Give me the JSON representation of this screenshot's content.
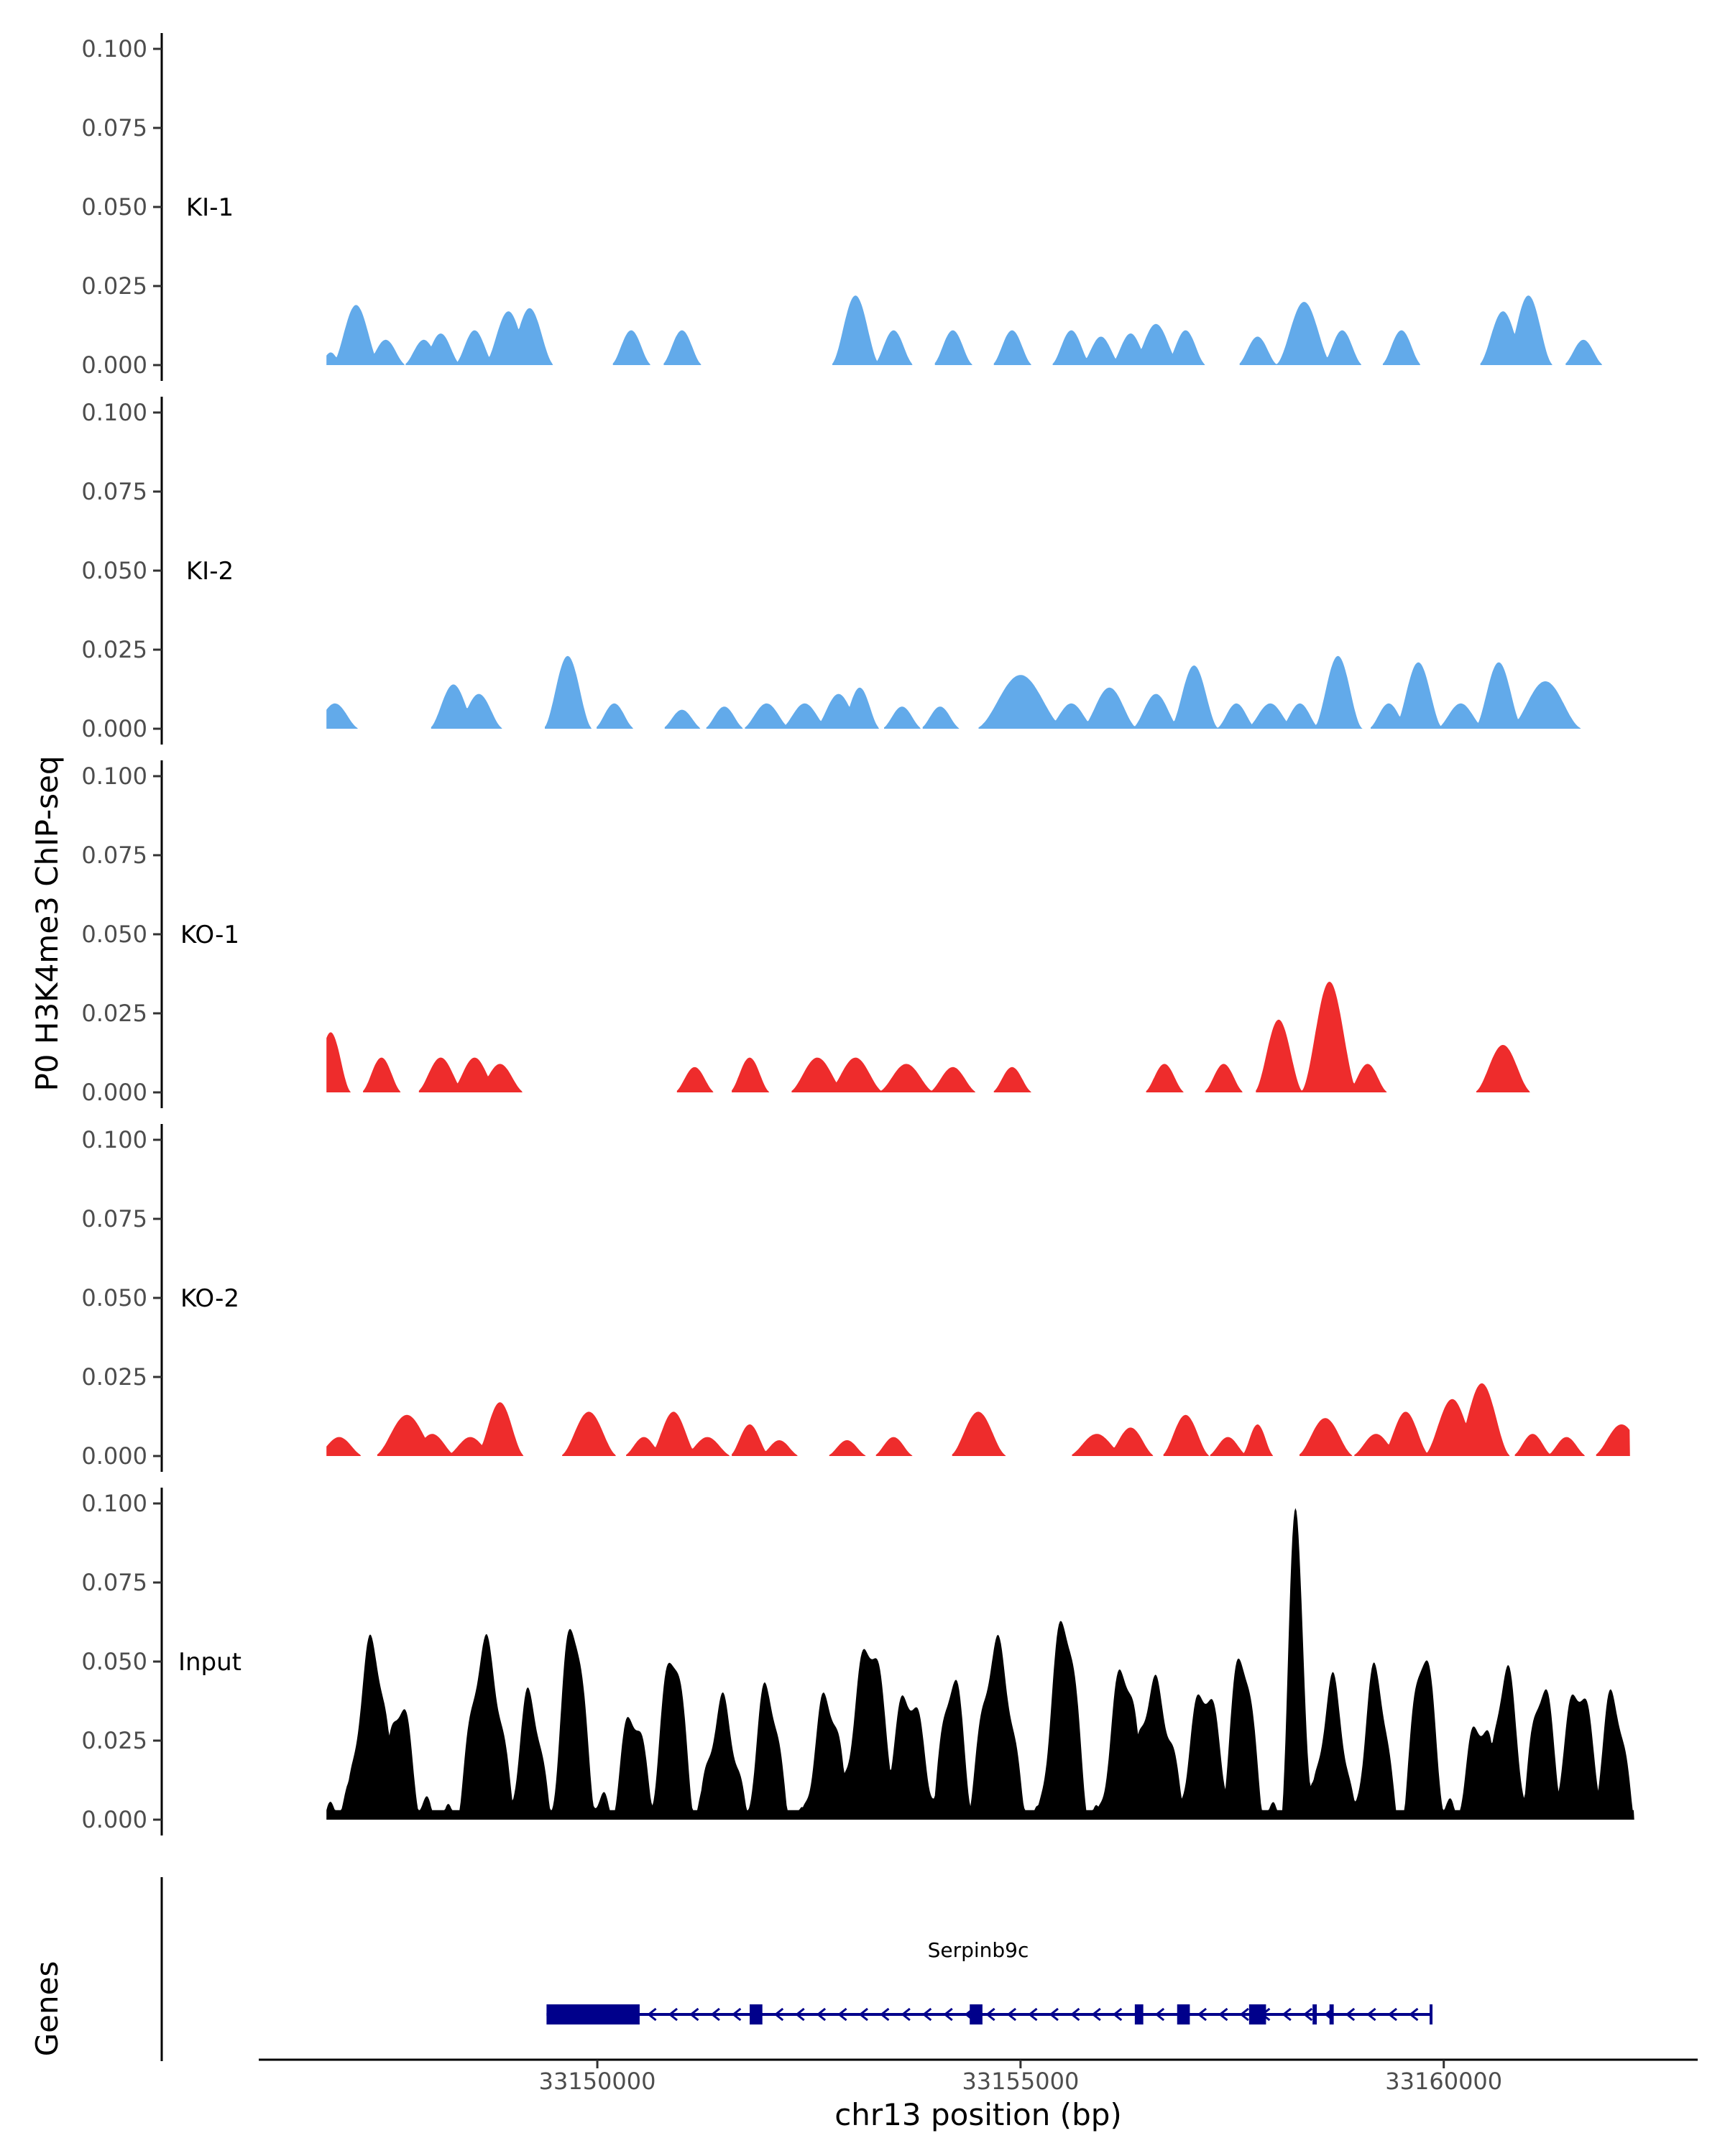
{
  "chart_data": {
    "type": "area",
    "ylabel": "P0 H3K4me3 ChIP-seq",
    "xlabel": "chr13 position (bp)",
    "xlim": [
      33146000,
      33163000
    ],
    "x_ticks": [
      33150000,
      33155000,
      33160000
    ],
    "ylim": [
      0,
      0.1
    ],
    "y_ticks": [
      0.0,
      0.025,
      0.05,
      0.075,
      0.1
    ],
    "y_tick_labels": [
      "0.000",
      "0.025",
      "0.050",
      "0.075",
      "0.100"
    ],
    "tracks": [
      {
        "name": "KI-1",
        "color": "#62aaea",
        "peaks": [
          [
            33146850,
            0.004,
            150
          ],
          [
            33147150,
            0.019,
            300
          ],
          [
            33147500,
            0.008,
            250
          ],
          [
            33147950,
            0.008,
            250
          ],
          [
            33148150,
            0.01,
            250
          ],
          [
            33148550,
            0.011,
            250
          ],
          [
            33148950,
            0.017,
            300
          ],
          [
            33149200,
            0.018,
            300
          ],
          [
            33150400,
            0.011,
            250
          ],
          [
            33151000,
            0.011,
            250
          ],
          [
            33153050,
            0.022,
            300
          ],
          [
            33153500,
            0.011,
            250
          ],
          [
            33154200,
            0.011,
            250
          ],
          [
            33154900,
            0.011,
            250
          ],
          [
            33155600,
            0.011,
            250
          ],
          [
            33155950,
            0.009,
            250
          ],
          [
            33156300,
            0.01,
            250
          ],
          [
            33156600,
            0.013,
            300
          ],
          [
            33156950,
            0.011,
            250
          ],
          [
            33157800,
            0.009,
            250
          ],
          [
            33158350,
            0.02,
            350
          ],
          [
            33158800,
            0.011,
            250
          ],
          [
            33159500,
            0.011,
            250
          ],
          [
            33160700,
            0.017,
            300
          ],
          [
            33161000,
            0.022,
            300
          ],
          [
            33161650,
            0.008,
            250
          ]
        ]
      },
      {
        "name": "KI-2",
        "color": "#62aaea",
        "peaks": [
          [
            33146900,
            0.008,
            300
          ],
          [
            33148300,
            0.014,
            300
          ],
          [
            33148600,
            0.011,
            300
          ],
          [
            33149650,
            0.023,
            300
          ],
          [
            33150200,
            0.008,
            250
          ],
          [
            33151000,
            0.006,
            250
          ],
          [
            33151500,
            0.007,
            250
          ],
          [
            33152000,
            0.008,
            300
          ],
          [
            33152450,
            0.008,
            300
          ],
          [
            33152850,
            0.011,
            300
          ],
          [
            33153100,
            0.013,
            250
          ],
          [
            33153600,
            0.007,
            250
          ],
          [
            33154050,
            0.007,
            250
          ],
          [
            33155000,
            0.017,
            550
          ],
          [
            33155600,
            0.008,
            300
          ],
          [
            33156050,
            0.013,
            350
          ],
          [
            33156600,
            0.011,
            300
          ],
          [
            33157050,
            0.02,
            300
          ],
          [
            33157550,
            0.008,
            250
          ],
          [
            33157950,
            0.008,
            300
          ],
          [
            33158300,
            0.008,
            250
          ],
          [
            33158750,
            0.023,
            300
          ],
          [
            33159350,
            0.008,
            250
          ],
          [
            33159700,
            0.021,
            300
          ],
          [
            33160200,
            0.008,
            300
          ],
          [
            33160650,
            0.021,
            300
          ],
          [
            33161200,
            0.015,
            450
          ]
        ]
      },
      {
        "name": "KO-1",
        "color": "#ee2c2c",
        "peaks": [
          [
            33146850,
            0.019,
            250
          ],
          [
            33147450,
            0.011,
            250
          ],
          [
            33148150,
            0.011,
            300
          ],
          [
            33148550,
            0.011,
            300
          ],
          [
            33148850,
            0.009,
            300
          ],
          [
            33151150,
            0.008,
            250
          ],
          [
            33151800,
            0.011,
            250
          ],
          [
            33152600,
            0.011,
            350
          ],
          [
            33153050,
            0.011,
            350
          ],
          [
            33153650,
            0.009,
            350
          ],
          [
            33154200,
            0.008,
            300
          ],
          [
            33154900,
            0.008,
            250
          ],
          [
            33156700,
            0.009,
            250
          ],
          [
            33157400,
            0.009,
            250
          ],
          [
            33158050,
            0.023,
            300
          ],
          [
            33158650,
            0.035,
            350
          ],
          [
            33159100,
            0.009,
            250
          ],
          [
            33160700,
            0.015,
            350
          ]
        ]
      },
      {
        "name": "KO-2",
        "color": "#ee2c2c",
        "peaks": [
          [
            33146950,
            0.006,
            300
          ],
          [
            33147750,
            0.013,
            400
          ],
          [
            33148050,
            0.007,
            300
          ],
          [
            33148500,
            0.006,
            300
          ],
          [
            33148850,
            0.017,
            300
          ],
          [
            33149900,
            0.014,
            350
          ],
          [
            33150550,
            0.006,
            250
          ],
          [
            33150900,
            0.014,
            300
          ],
          [
            33151300,
            0.006,
            300
          ],
          [
            33151800,
            0.01,
            250
          ],
          [
            33152150,
            0.005,
            250
          ],
          [
            33152950,
            0.005,
            250
          ],
          [
            33153500,
            0.006,
            250
          ],
          [
            33154500,
            0.014,
            350
          ],
          [
            33155900,
            0.007,
            350
          ],
          [
            33156300,
            0.009,
            300
          ],
          [
            33156950,
            0.013,
            300
          ],
          [
            33157450,
            0.006,
            250
          ],
          [
            33157800,
            0.01,
            200
          ],
          [
            33158600,
            0.012,
            350
          ],
          [
            33159200,
            0.007,
            300
          ],
          [
            33159550,
            0.014,
            300
          ],
          [
            33160100,
            0.018,
            350
          ],
          [
            33160450,
            0.023,
            350
          ],
          [
            33161050,
            0.007,
            250
          ],
          [
            33161450,
            0.006,
            250
          ],
          [
            33162100,
            0.01,
            350
          ]
        ]
      },
      {
        "name": "Input",
        "color": "#000000",
        "baseline": 0.004,
        "peaks": [
          [
            33147350,
            0.058,
            350
          ],
          [
            33147650,
            0.035,
            300
          ],
          [
            33148700,
            0.055,
            400
          ],
          [
            33149200,
            0.035,
            300
          ],
          [
            33149700,
            0.063,
            300
          ],
          [
            33150400,
            0.035,
            300
          ],
          [
            33150900,
            0.055,
            300
          ],
          [
            33151500,
            0.035,
            350
          ],
          [
            33152000,
            0.038,
            300
          ],
          [
            33152700,
            0.035,
            350
          ],
          [
            33153200,
            0.058,
            400
          ],
          [
            33153700,
            0.04,
            400
          ],
          [
            33154200,
            0.04,
            300
          ],
          [
            33154700,
            0.055,
            400
          ],
          [
            33155500,
            0.06,
            350
          ],
          [
            33156200,
            0.045,
            350
          ],
          [
            33156600,
            0.045,
            400
          ],
          [
            33157200,
            0.04,
            400
          ],
          [
            33157600,
            0.05,
            300
          ],
          [
            33158250,
            0.096,
            200
          ],
          [
            33158700,
            0.045,
            300
          ],
          [
            33159200,
            0.043,
            300
          ],
          [
            33159750,
            0.05,
            300
          ],
          [
            33160400,
            0.03,
            350
          ],
          [
            33160750,
            0.046,
            300
          ],
          [
            33161150,
            0.04,
            300
          ],
          [
            33161600,
            0.045,
            350
          ],
          [
            33162000,
            0.035,
            300
          ]
        ]
      }
    ],
    "genes": {
      "title": "Genes",
      "label": "Serpinb9c",
      "color": "#00008b",
      "start": 33149400,
      "end": 33159850,
      "strand": "-",
      "exons": [
        [
          33149400,
          33150500
        ],
        [
          33151800,
          33151950
        ],
        [
          33154400,
          33154550
        ],
        [
          33156350,
          33156450
        ],
        [
          33156850,
          33157000
        ],
        [
          33157700,
          33157900
        ],
        [
          33158450,
          33158500
        ],
        [
          33158650,
          33158700
        ]
      ]
    }
  }
}
